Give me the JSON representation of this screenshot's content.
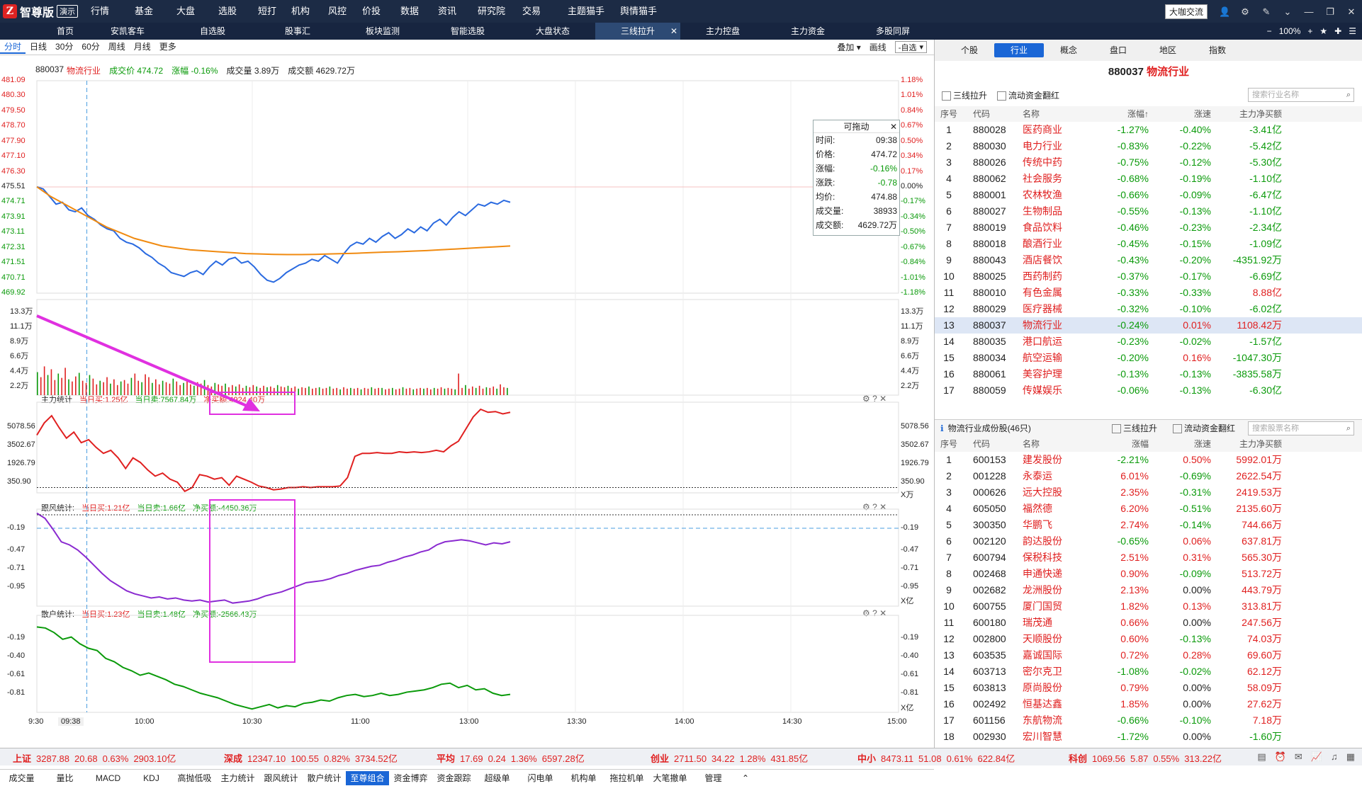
{
  "app": {
    "name": "智尊版",
    "demo": "演示"
  },
  "menu": [
    "行情",
    "基金",
    "大盘",
    "选股",
    "短打",
    "机构",
    "风控",
    "价投",
    "数据",
    "资讯",
    "研究院",
    "交易",
    "主题猫手",
    "舆情猫手"
  ],
  "topright": {
    "talk": "大咖交流"
  },
  "tabs": [
    "首页",
    "安凯客车",
    "自选股",
    "股事汇",
    "板块监测",
    "智能选股",
    "大盘状态",
    "三线拉升",
    "主力控盘",
    "主力资金",
    "多股同屏"
  ],
  "active_tab": "三线拉升",
  "zoom": "100%",
  "periods": [
    "分时",
    "日线",
    "30分",
    "60分",
    "周线",
    "月线",
    "更多"
  ],
  "period_right": {
    "overlay": "叠加",
    "draw": "画线",
    "selfsel": "-自选"
  },
  "info": {
    "code": "880037",
    "name": "物流行业",
    "price_label": "成交价",
    "price": "474.72",
    "chg_label": "涨幅",
    "chg": "-0.16%",
    "vol_label": "成交量",
    "vol": "3.89万",
    "amt_label": "成交额",
    "amt": "4629.72万"
  },
  "price_axis_left": [
    "481.09",
    "480.30",
    "479.50",
    "478.70",
    "477.90",
    "477.10",
    "476.30",
    "475.51",
    "474.71",
    "473.91",
    "473.11",
    "472.31",
    "471.51",
    "470.71",
    "469.92"
  ],
  "price_axis_right": [
    "1.18%",
    "1.01%",
    "0.84%",
    "0.67%",
    "0.50%",
    "0.34%",
    "0.17%",
    "0.00%",
    "-0.17%",
    "-0.34%",
    "-0.50%",
    "-0.67%",
    "-0.84%",
    "-1.01%",
    "-1.18%"
  ],
  "vol_axis": [
    "13.3万",
    "11.1万",
    "8.9万",
    "6.6万",
    "4.4万",
    "2.2万"
  ],
  "times": [
    "9:30",
    "09:38",
    "10:00",
    "10:30",
    "11:00",
    "13:00",
    "13:30",
    "14:00",
    "14:30",
    "15:00"
  ],
  "floatbox": {
    "title": "可拖动",
    "rows": [
      {
        "k": "时间:",
        "v": "09:38"
      },
      {
        "k": "价格:",
        "v": "474.72"
      },
      {
        "k": "涨幅:",
        "v": "-0.16%"
      },
      {
        "k": "涨跌:",
        "v": "-0.78"
      },
      {
        "k": "均价:",
        "v": "474.88"
      },
      {
        "k": "成交量:",
        "v": "38933"
      },
      {
        "k": "成交额:",
        "v": "4629.72万"
      }
    ]
  },
  "panel1": {
    "name": "主力统计",
    "buy": "当日买:1.25亿",
    "sell": "当日卖:7567.84万",
    "net": "净买额:4924.40万",
    "axis": [
      "5078.56",
      "3502.67",
      "1926.79",
      "350.90"
    ],
    "unit": "X万"
  },
  "panel2": {
    "name": "跟风统计:",
    "buy": "当日买:1.21亿",
    "sell": "当日卖:1.66亿",
    "net": "净买额:-4450.36万",
    "axis": [
      "-0.19",
      "-0.47",
      "-0.71",
      "-0.95"
    ],
    "unit": "X亿"
  },
  "panel3": {
    "name": "散户统计:",
    "buy": "当日买:1.23亿",
    "sell": "当日卖:1.48亿",
    "net": "净买额:-2566.43万",
    "axis": [
      "-0.19",
      "-0.40",
      "-0.61",
      "-0.81"
    ],
    "unit": "X亿"
  },
  "indicators": [
    "成交量",
    "量比",
    "MACD",
    "KDJ",
    "高抛低吸",
    "主力统计",
    "跟风统计",
    "散户统计",
    "至尊组合",
    "资金博弈",
    "资金跟踪",
    "超级单",
    "闪电单",
    "机构单",
    "拖拉机单",
    "大笔撤单",
    "管理"
  ],
  "active_indicator": "至尊组合",
  "rtabs": [
    "个股",
    "行业",
    "概念",
    "盘口",
    "地区",
    "指数"
  ],
  "active_rtab": "行业",
  "rtitle": {
    "code": "880037",
    "name": "物流行业"
  },
  "opts": {
    "a": "三线拉升",
    "b": "流动资金翻红",
    "search1": "搜索行业名称",
    "search2": "搜索股票名称"
  },
  "table_headers": [
    "序号",
    "代码",
    "名称",
    "涨幅↑",
    "涨速",
    "主力净买额"
  ],
  "industry_rows": [
    [
      "1",
      "880028",
      "医药商业",
      "-1.27%",
      "-0.40%",
      "-3.41亿"
    ],
    [
      "2",
      "880030",
      "电力行业",
      "-0.83%",
      "-0.22%",
      "-5.42亿"
    ],
    [
      "3",
      "880026",
      "传统中药",
      "-0.75%",
      "-0.12%",
      "-5.30亿"
    ],
    [
      "4",
      "880062",
      "社会服务",
      "-0.68%",
      "-0.19%",
      "-1.10亿"
    ],
    [
      "5",
      "880001",
      "农林牧渔",
      "-0.66%",
      "-0.09%",
      "-6.47亿"
    ],
    [
      "6",
      "880027",
      "生物制品",
      "-0.55%",
      "-0.13%",
      "-1.10亿"
    ],
    [
      "7",
      "880019",
      "食品饮料",
      "-0.46%",
      "-0.23%",
      "-2.34亿"
    ],
    [
      "8",
      "880018",
      "酿酒行业",
      "-0.45%",
      "-0.15%",
      "-1.09亿"
    ],
    [
      "9",
      "880043",
      "酒店餐饮",
      "-0.43%",
      "-0.20%",
      "-4351.92万"
    ],
    [
      "10",
      "880025",
      "西药制药",
      "-0.37%",
      "-0.17%",
      "-6.69亿"
    ],
    [
      "11",
      "880010",
      "有色金属",
      "-0.33%",
      "-0.33%",
      "8.88亿"
    ],
    [
      "12",
      "880029",
      "医疗器械",
      "-0.32%",
      "-0.10%",
      "-6.02亿"
    ],
    [
      "13",
      "880037",
      "物流行业",
      "-0.24%",
      "0.01%",
      "1108.42万"
    ],
    [
      "14",
      "880035",
      "港口航运",
      "-0.23%",
      "-0.02%",
      "-1.57亿"
    ],
    [
      "15",
      "880034",
      "航空运输",
      "-0.20%",
      "0.16%",
      "-1047.30万"
    ],
    [
      "16",
      "880061",
      "美容护理",
      "-0.13%",
      "-0.13%",
      "-3835.58万"
    ],
    [
      "17",
      "880059",
      "传媒娱乐",
      "-0.06%",
      "-0.13%",
      "-6.30亿"
    ]
  ],
  "selected_row": 12,
  "constituent_title": "物流行业成份股(46只)",
  "table_headers2": [
    "序号",
    "代码",
    "名称",
    "涨幅",
    "涨速",
    "主力净买额"
  ],
  "stock_rows": [
    [
      "1",
      "600153",
      "建发股份",
      "-2.21%",
      "0.50%",
      "5992.01万"
    ],
    [
      "2",
      "001228",
      "永泰运",
      "6.01%",
      "-0.69%",
      "2622.54万"
    ],
    [
      "3",
      "000626",
      "远大控股",
      "2.35%",
      "-0.31%",
      "2419.53万"
    ],
    [
      "4",
      "605050",
      "福然德",
      "6.20%",
      "-0.51%",
      "2135.60万"
    ],
    [
      "5",
      "300350",
      "华鹏飞",
      "2.74%",
      "-0.14%",
      "744.66万"
    ],
    [
      "6",
      "002120",
      "韵达股份",
      "-0.65%",
      "0.06%",
      "637.81万"
    ],
    [
      "7",
      "600794",
      "保税科技",
      "2.51%",
      "0.31%",
      "565.30万"
    ],
    [
      "8",
      "002468",
      "申通快递",
      "0.90%",
      "-0.09%",
      "513.72万"
    ],
    [
      "9",
      "002682",
      "龙洲股份",
      "2.13%",
      "0.00%",
      "443.79万"
    ],
    [
      "10",
      "600755",
      "厦门国贸",
      "1.82%",
      "0.13%",
      "313.81万"
    ],
    [
      "11",
      "600180",
      "瑞茂通",
      "0.66%",
      "0.00%",
      "247.56万"
    ],
    [
      "12",
      "002800",
      "天顺股份",
      "0.60%",
      "-0.13%",
      "74.03万"
    ],
    [
      "13",
      "603535",
      "嘉诚国际",
      "0.72%",
      "0.28%",
      "69.60万"
    ],
    [
      "14",
      "603713",
      "密尔克卫",
      "-1.08%",
      "-0.02%",
      "62.12万"
    ],
    [
      "15",
      "603813",
      "原尚股份",
      "0.79%",
      "0.00%",
      "58.09万"
    ],
    [
      "16",
      "002492",
      "恒基达鑫",
      "1.85%",
      "0.00%",
      "27.62万"
    ],
    [
      "17",
      "601156",
      "东航物流",
      "-0.66%",
      "-0.10%",
      "7.18万"
    ],
    [
      "18",
      "002930",
      "宏川智慧",
      "-1.72%",
      "0.00%",
      "-1.60万"
    ]
  ],
  "status": [
    {
      "n": "上证",
      "v": "3287.88",
      "c": "20.68",
      "p": "0.63%",
      "a": "2903.10亿"
    },
    {
      "n": "深成",
      "v": "12347.10",
      "c": "100.55",
      "p": "0.82%",
      "a": "3734.52亿"
    },
    {
      "n": "平均",
      "v": "17.69",
      "c": "0.24",
      "p": "1.36%",
      "a": "6597.28亿"
    },
    {
      "n": "创业",
      "v": "2711.50",
      "c": "34.22",
      "p": "1.28%",
      "a": "431.85亿"
    },
    {
      "n": "中小",
      "v": "8473.11",
      "c": "51.08",
      "p": "0.61%",
      "a": "622.84亿"
    },
    {
      "n": "科创",
      "v": "1069.56",
      "c": "5.87",
      "p": "0.55%",
      "a": "313.22亿"
    }
  ],
  "colors": {
    "up": "#e02020",
    "down": "#0a9a0a",
    "price_line": "#2a6ae0",
    "avg_line": "#f08a10",
    "main_line": "#e02020",
    "follow_line": "#8a2ad0",
    "retail_line": "#0a9a0a",
    "annot": "#e030e0"
  },
  "series": {
    "price": [
      475.51,
      475.4,
      475.0,
      474.6,
      474.7,
      474.3,
      474.2,
      474.4,
      474.0,
      473.8,
      473.5,
      473.3,
      473.2,
      472.8,
      472.6,
      472.5,
      472.3,
      472.0,
      471.8,
      471.5,
      471.3,
      471.0,
      470.9,
      470.8,
      471.0,
      471.1,
      470.9,
      471.3,
      471.6,
      471.4,
      471.7,
      471.8,
      471.5,
      471.6,
      471.3,
      470.9,
      470.6,
      470.5,
      470.7,
      471.0,
      471.2,
      471.4,
      471.5,
      471.7,
      471.6,
      471.9,
      471.7,
      471.5,
      472.0,
      472.4,
      472.6,
      472.5,
      472.8,
      472.6,
      472.9,
      473.1,
      472.8,
      473.0,
      473.3,
      473.1,
      473.4,
      473.2,
      473.6,
      473.8,
      473.5,
      473.9,
      474.2,
      474.0,
      474.3,
      474.6,
      474.5,
      474.7,
      474.6,
      474.8,
      474.7
    ],
    "avg": [
      475.51,
      475.0,
      474.6,
      474.2,
      473.8,
      473.4,
      473.1,
      472.8,
      472.6,
      472.4,
      472.3,
      472.2,
      472.15,
      472.1,
      472.05,
      472.0,
      471.98,
      471.96,
      471.95,
      471.95,
      471.96,
      471.98,
      472.0,
      472.02,
      472.05,
      472.08,
      472.1,
      472.13,
      472.16,
      472.2,
      472.24,
      472.28,
      472.32,
      472.36,
      472.4
    ],
    "vol": [
      3.2,
      2.5,
      4.0,
      2.8,
      3.6,
      2.1,
      3.0,
      2.4,
      3.8,
      2.2,
      1.9,
      2.6,
      3.1,
      2.0,
      1.7,
      2.8,
      2.3,
      1.5,
      2.0,
      1.8,
      2.5,
      1.6,
      2.2,
      1.4,
      1.9,
      2.1,
      1.6,
      2.4,
      3.0,
      2.0,
      1.8,
      2.9,
      2.5,
      1.7,
      2.2,
      1.5,
      2.0,
      1.8,
      1.6,
      2.3,
      1.9,
      1.4,
      1.7,
      2.0,
      1.5,
      1.3,
      1.8,
      1.6,
      2.1,
      1.4,
      1.2,
      1.7,
      1.5,
      1.3,
      1.6,
      1.1,
      1.4,
      1.2,
      1.5,
      1.0,
      1.3,
      1.1,
      1.4,
      1.2,
      1.0,
      1.3,
      1.1,
      1.2,
      1.0,
      1.4,
      1.2,
      1.1,
      1.3,
      1.0,
      1.2,
      0.9,
      1.1,
      1.0,
      1.2,
      0.9,
      1.0,
      1.1,
      0.9,
      1.0,
      1.2,
      0.9,
      1.0,
      0.8,
      1.1,
      0.9,
      1.0,
      0.9,
      1.0,
      0.8,
      1.0,
      0.9,
      1.1,
      0.9,
      1.0,
      1.0,
      0.8,
      0.9,
      1.0,
      0.8,
      0.9,
      1.1,
      0.9,
      1.0,
      0.8,
      0.9,
      1.0,
      0.9,
      1.0,
      0.8,
      1.0,
      0.9,
      1.1,
      0.9,
      1.0,
      0.9,
      0.8,
      3.0,
      1.0,
      1.4,
      0.9,
      1.2,
      1.0,
      1.3,
      0.9,
      1.1,
      1.0,
      1.2,
      0.9,
      1.5,
      1.1,
      1.0
    ],
    "main": [
      3800,
      4600,
      5078,
      4300,
      3600,
      4000,
      3300,
      3500,
      3000,
      2600,
      2800,
      2300,
      1600,
      2300,
      2000,
      1500,
      1100,
      1300,
      900,
      700,
      100,
      350,
      1200,
      1100,
      900,
      1000,
      500,
      1100,
      900,
      700,
      450,
      350,
      200,
      250,
      350,
      350,
      400,
      350,
      400,
      400,
      400,
      450,
      1000,
      2400,
      2600,
      2600,
      2650,
      2600,
      2600,
      2700,
      2650,
      2700,
      2650,
      2700,
      2800,
      2700,
      3100,
      3400,
      4200,
      5000,
      5500,
      5300,
      5350,
      5200,
      5300
    ],
    "follow": [
      -0.19,
      -0.24,
      -0.35,
      -0.47,
      -0.5,
      -0.55,
      -0.62,
      -0.7,
      -0.78,
      -0.85,
      -0.9,
      -0.95,
      -0.98,
      -1.0,
      -1.02,
      -1.01,
      -1.03,
      -1.02,
      -1.04,
      -1.05,
      -1.04,
      -1.06,
      -1.05,
      -1.04,
      -1.07,
      -1.06,
      -1.05,
      -1.03,
      -1.0,
      -0.98,
      -0.96,
      -0.93,
      -0.9,
      -0.87,
      -0.86,
      -0.85,
      -0.83,
      -0.8,
      -0.78,
      -0.75,
      -0.73,
      -0.71,
      -0.7,
      -0.67,
      -0.65,
      -0.62,
      -0.6,
      -0.57,
      -0.55,
      -0.5,
      -0.47,
      -0.46,
      -0.45,
      -0.46,
      -0.48,
      -0.5,
      -0.48,
      -0.49,
      -0.47
    ],
    "retail": [
      -0.19,
      -0.2,
      -0.24,
      -0.3,
      -0.28,
      -0.34,
      -0.38,
      -0.4,
      -0.47,
      -0.5,
      -0.55,
      -0.58,
      -0.62,
      -0.6,
      -0.63,
      -0.66,
      -0.7,
      -0.72,
      -0.75,
      -0.78,
      -0.8,
      -0.82,
      -0.85,
      -0.88,
      -0.9,
      -0.92,
      -0.9,
      -0.88,
      -0.91,
      -0.89,
      -0.9,
      -0.87,
      -0.86,
      -0.84,
      -0.85,
      -0.82,
      -0.8,
      -0.79,
      -0.81,
      -0.8,
      -0.78,
      -0.8,
      -0.79,
      -0.77,
      -0.76,
      -0.75,
      -0.73,
      -0.7,
      -0.69,
      -0.73,
      -0.71,
      -0.75,
      -0.74,
      -0.78,
      -0.8,
      -0.79
    ]
  }
}
